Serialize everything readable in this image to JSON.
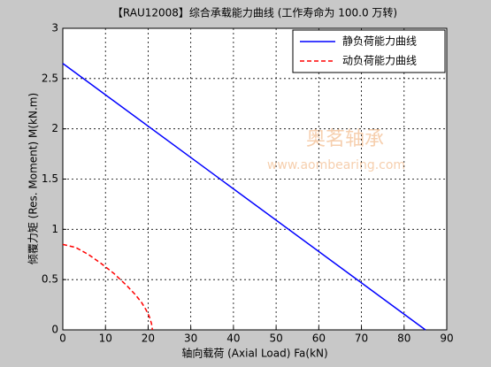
{
  "chart_data": {
    "type": "line",
    "title": "【RAU12008】综合承载能力曲线 (工作寿命为 100.0 万转)",
    "x_label": "轴向载荷 (Axial Load) Fa(kN)",
    "y_label": "倾覆力矩 (Res. Moment) M(kN.m)",
    "annotations": [
      "奥茗轴承",
      "www.aombearing.com"
    ],
    "xlim": [
      0,
      90
    ],
    "xticks": [
      0,
      10,
      20,
      30,
      40,
      50,
      60,
      70,
      80,
      90
    ],
    "ylim": [
      0,
      3
    ],
    "yticks": [
      0,
      0.5,
      1,
      1.5,
      2,
      2.5,
      3
    ],
    "grid": true,
    "legend": "upper-right",
    "series": [
      {
        "name": "静负荷能力曲线",
        "color": "#0000ff",
        "style": "solid",
        "x": [
          0,
          85
        ],
        "values": [
          2.65,
          0
        ]
      },
      {
        "name": "动负荷能力曲线",
        "color": "#ff0000",
        "style": "dashed",
        "x": [
          0,
          3,
          6,
          9,
          12,
          15,
          17,
          18.5,
          19.5,
          20.3,
          20.8,
          21
        ],
        "values": [
          0.85,
          0.82,
          0.75,
          0.66,
          0.56,
          0.44,
          0.35,
          0.27,
          0.2,
          0.13,
          0.06,
          0
        ]
      }
    ]
  }
}
